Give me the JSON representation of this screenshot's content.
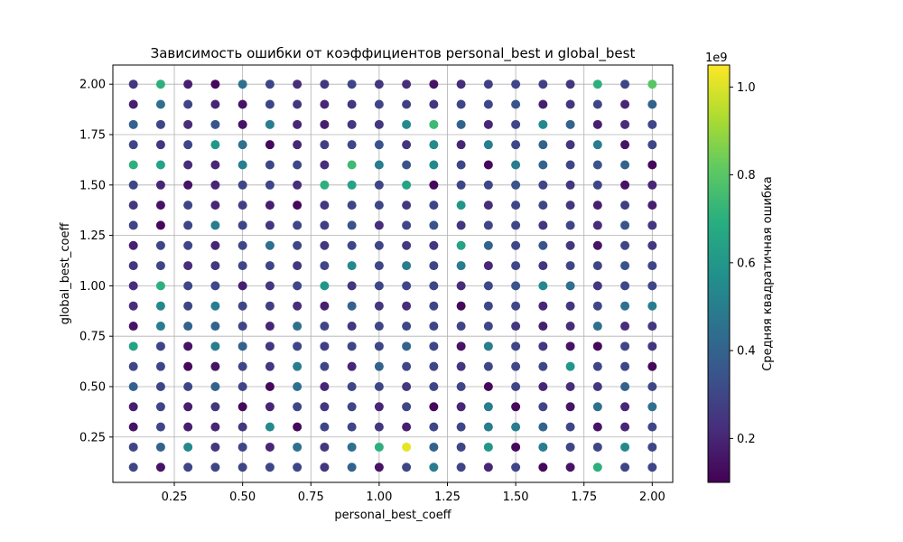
{
  "chart_data": {
    "type": "scatter",
    "title": "Зависимость ошибки от коэффициентов personal_best и global_best",
    "xlabel": "personal_best_coeff",
    "ylabel": "global_best_coeff",
    "xlim": [
      0.025,
      2.075
    ],
    "ylim": [
      0.025,
      2.095
    ],
    "xticks": [
      0.25,
      0.5,
      0.75,
      1.0,
      1.25,
      1.5,
      1.75,
      2.0
    ],
    "xtick_labels": [
      "0.25",
      "0.50",
      "0.75",
      "1.00",
      "1.25",
      "1.50",
      "1.75",
      "2.00"
    ],
    "yticks": [
      0.25,
      0.5,
      0.75,
      1.0,
      1.25,
      1.5,
      1.75,
      2.0
    ],
    "ytick_labels": [
      "0.25",
      "0.50",
      "0.75",
      "1.00",
      "1.25",
      "1.50",
      "1.75",
      "2.00"
    ],
    "grid": true,
    "x_values": [
      0.1,
      0.2,
      0.3,
      0.4,
      0.5,
      0.6,
      0.7,
      0.8,
      0.9,
      1.0,
      1.1,
      1.2,
      1.3,
      1.4,
      1.5,
      1.6,
      1.7,
      1.8,
      1.9,
      2.0
    ],
    "y_values": [
      2.0,
      1.9,
      1.8,
      1.7,
      1.6,
      1.5,
      1.4,
      1.3,
      1.2,
      1.1,
      1.0,
      0.9,
      0.8,
      0.7,
      0.6,
      0.5,
      0.4,
      0.3,
      0.2,
      0.1
    ],
    "color_grid_units": "1e9",
    "color_grid": [
      [
        0.25,
        0.7,
        0.18,
        0.12,
        0.45,
        0.3,
        0.22,
        0.25,
        0.3,
        0.25,
        0.22,
        0.15,
        0.22,
        0.28,
        0.3,
        0.28,
        0.25,
        0.7,
        0.3,
        0.8
      ],
      [
        0.18,
        0.45,
        0.3,
        0.2,
        0.15,
        0.3,
        0.25,
        0.2,
        0.25,
        0.3,
        0.28,
        0.25,
        0.3,
        0.3,
        0.35,
        0.18,
        0.25,
        0.3,
        0.2,
        0.4
      ],
      [
        0.4,
        0.3,
        0.22,
        0.35,
        0.15,
        0.5,
        0.2,
        0.18,
        0.25,
        0.25,
        0.55,
        0.75,
        0.4,
        0.2,
        0.3,
        0.55,
        0.4,
        0.18,
        0.22,
        0.3
      ],
      [
        0.3,
        0.25,
        0.3,
        0.6,
        0.45,
        0.12,
        0.2,
        0.28,
        0.3,
        0.35,
        0.25,
        0.55,
        0.2,
        0.5,
        0.3,
        0.4,
        0.25,
        0.5,
        0.15,
        0.3
      ],
      [
        0.7,
        0.65,
        0.22,
        0.2,
        0.5,
        0.3,
        0.3,
        0.22,
        0.75,
        0.5,
        0.35,
        0.55,
        0.3,
        0.12,
        0.5,
        0.4,
        0.3,
        0.35,
        0.4,
        0.12
      ],
      [
        0.3,
        0.2,
        0.15,
        0.2,
        0.3,
        0.3,
        0.22,
        0.7,
        0.65,
        0.3,
        0.65,
        0.12,
        0.3,
        0.3,
        0.35,
        0.3,
        0.25,
        0.3,
        0.15,
        0.2
      ],
      [
        0.25,
        0.15,
        0.3,
        0.2,
        0.28,
        0.18,
        0.12,
        0.25,
        0.3,
        0.3,
        0.25,
        0.3,
        0.6,
        0.22,
        0.3,
        0.3,
        0.25,
        0.18,
        0.28,
        0.18
      ],
      [
        0.3,
        0.12,
        0.3,
        0.5,
        0.3,
        0.25,
        0.3,
        0.28,
        0.35,
        0.22,
        0.3,
        0.35,
        0.25,
        0.3,
        0.3,
        0.25,
        0.3,
        0.22,
        0.35,
        0.25
      ],
      [
        0.18,
        0.3,
        0.3,
        0.2,
        0.3,
        0.45,
        0.3,
        0.25,
        0.3,
        0.3,
        0.25,
        0.25,
        0.65,
        0.4,
        0.3,
        0.35,
        0.25,
        0.15,
        0.3,
        0.25
      ],
      [
        0.25,
        0.3,
        0.22,
        0.25,
        0.3,
        0.3,
        0.25,
        0.3,
        0.55,
        0.3,
        0.5,
        0.3,
        0.5,
        0.2,
        0.3,
        0.25,
        0.3,
        0.3,
        0.35,
        0.3
      ],
      [
        0.22,
        0.7,
        0.3,
        0.3,
        0.18,
        0.25,
        0.3,
        0.6,
        0.25,
        0.3,
        0.3,
        0.3,
        0.22,
        0.3,
        0.35,
        0.55,
        0.45,
        0.25,
        0.3,
        0.3
      ],
      [
        0.22,
        0.55,
        0.3,
        0.5,
        0.3,
        0.28,
        0.22,
        0.18,
        0.4,
        0.25,
        0.22,
        0.3,
        0.12,
        0.3,
        0.3,
        0.2,
        0.25,
        0.3,
        0.45,
        0.5
      ],
      [
        0.15,
        0.5,
        0.4,
        0.4,
        0.3,
        0.2,
        0.45,
        0.3,
        0.25,
        0.3,
        0.3,
        0.3,
        0.3,
        0.3,
        0.25,
        0.18,
        0.22,
        0.45,
        0.22,
        0.25
      ],
      [
        0.65,
        0.3,
        0.15,
        0.5,
        0.4,
        0.25,
        0.3,
        0.28,
        0.3,
        0.3,
        0.4,
        0.3,
        0.15,
        0.5,
        0.3,
        0.25,
        0.15,
        0.12,
        0.3,
        0.25
      ],
      [
        0.3,
        0.3,
        0.12,
        0.15,
        0.3,
        0.25,
        0.5,
        0.3,
        0.2,
        0.4,
        0.3,
        0.3,
        0.25,
        0.3,
        0.3,
        0.3,
        0.6,
        0.3,
        0.3,
        0.12
      ],
      [
        0.4,
        0.3,
        0.3,
        0.4,
        0.3,
        0.12,
        0.45,
        0.2,
        0.3,
        0.3,
        0.25,
        0.3,
        0.3,
        0.12,
        0.3,
        0.2,
        0.22,
        0.25,
        0.4,
        0.3
      ],
      [
        0.18,
        0.3,
        0.18,
        0.25,
        0.12,
        0.2,
        0.3,
        0.25,
        0.3,
        0.2,
        0.3,
        0.12,
        0.2,
        0.5,
        0.12,
        0.3,
        0.15,
        0.45,
        0.2,
        0.45
      ],
      [
        0.15,
        0.3,
        0.18,
        0.2,
        0.25,
        0.55,
        0.12,
        0.3,
        0.3,
        0.25,
        0.18,
        0.3,
        0.3,
        0.5,
        0.5,
        0.4,
        0.3,
        0.15,
        0.2,
        0.3
      ],
      [
        0.3,
        0.4,
        0.55,
        0.25,
        0.3,
        0.2,
        0.45,
        0.25,
        0.45,
        0.7,
        1.02,
        0.4,
        0.3,
        0.6,
        0.12,
        0.5,
        0.3,
        0.3,
        0.55,
        0.3
      ],
      [
        0.3,
        0.15,
        0.3,
        0.3,
        0.3,
        0.3,
        0.3,
        0.25,
        0.4,
        0.15,
        0.3,
        0.5,
        0.3,
        0.2,
        0.3,
        0.12,
        0.15,
        0.7,
        0.3,
        0.3
      ]
    ],
    "colorbar": {
      "label": "Средняя квадратичная ошибка",
      "offset_label": "1e9",
      "range": [
        0.1,
        1.05
      ],
      "ticks": [
        0.2,
        0.4,
        0.6,
        0.8,
        1.0
      ],
      "tick_labels": [
        "0.2",
        "0.4",
        "0.6",
        "0.8",
        "1.0"
      ],
      "colormap": "viridis"
    }
  }
}
